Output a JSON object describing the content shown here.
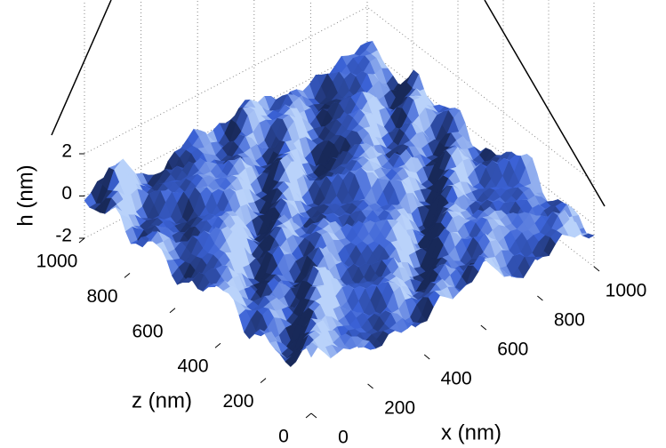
{
  "chart_data": {
    "type": "surface3d",
    "xlabel": "x (nm)",
    "zlabel": "z (nm)",
    "hlabel": "h (nm)",
    "xlim": [
      0,
      1000
    ],
    "xticks": [
      0,
      200,
      400,
      600,
      800,
      1000
    ],
    "zlim": [
      0,
      1000
    ],
    "zticks": [
      0,
      200,
      400,
      600,
      800,
      1000
    ],
    "hlim": [
      -2,
      2
    ],
    "hticks": [
      -2,
      0,
      2
    ],
    "grid": true,
    "color": "#3b62d6"
  }
}
